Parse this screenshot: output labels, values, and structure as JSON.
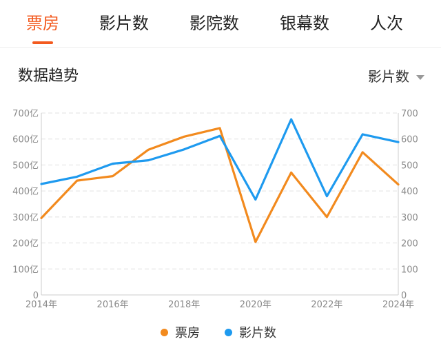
{
  "tabs": [
    {
      "label": "票房",
      "active": true
    },
    {
      "label": "影片数",
      "active": false
    },
    {
      "label": "影院数",
      "active": false
    },
    {
      "label": "银幕数",
      "active": false
    },
    {
      "label": "人次",
      "active": false
    }
  ],
  "section_title": "数据趋势",
  "metric_selector": {
    "selected": "影片数"
  },
  "colors": {
    "accent": "#f35a1f",
    "box_office": "#f28a1e",
    "film_count": "#1e9aef",
    "grid": "#e0e0e0",
    "tick_text": "#8a8a8a"
  },
  "chart_data": {
    "type": "line",
    "x": [
      2014,
      2015,
      2016,
      2017,
      2018,
      2019,
      2020,
      2021,
      2022,
      2023,
      2024
    ],
    "x_tick_labels": [
      "2014年",
      "2016年",
      "2018年",
      "2020年",
      "2022年",
      "2024年"
    ],
    "x_tick_values": [
      2014,
      2016,
      2018,
      2020,
      2022,
      2024
    ],
    "xlim": [
      2014,
      2024
    ],
    "series": [
      {
        "name": "票房",
        "axis": "left",
        "color": "#f28a1e",
        "values": [
          296,
          440,
          457,
          559,
          609,
          642,
          204,
          471,
          300,
          549,
          425
        ]
      },
      {
        "name": "影片数",
        "axis": "right",
        "color": "#1e9aef",
        "values": [
          427,
          455,
          505,
          518,
          560,
          612,
          367,
          676,
          380,
          618,
          588
        ]
      }
    ],
    "y_left": {
      "ylim": [
        0,
        700
      ],
      "tick_values": [
        0,
        100,
        200,
        300,
        400,
        500,
        600,
        700
      ],
      "tick_labels": [
        "0",
        "100亿",
        "200亿",
        "300亿",
        "400亿",
        "500亿",
        "600亿",
        "700亿"
      ]
    },
    "y_right": {
      "ylim": [
        0,
        700
      ],
      "tick_values": [
        0,
        100,
        200,
        300,
        400,
        500,
        600,
        700
      ],
      "tick_labels": [
        "0",
        "100",
        "200",
        "300",
        "400",
        "500",
        "600",
        "700"
      ]
    },
    "grid": true,
    "legend": {
      "position": "bottom-center",
      "entries": [
        "票房",
        "影片数"
      ]
    }
  }
}
